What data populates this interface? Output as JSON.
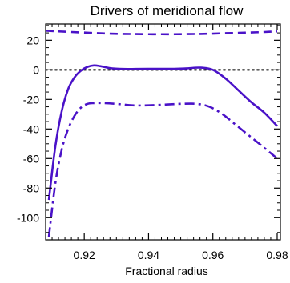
{
  "chart_data": {
    "type": "line",
    "title": "Drivers of meridional flow",
    "xlabel": "Fractional radius",
    "ylabel": "",
    "xlim": [
      0.908,
      0.981
    ],
    "ylim": [
      -115,
      31
    ],
    "x_ticks": [
      0.92,
      0.94,
      0.96,
      0.98
    ],
    "x_tick_labels": [
      "0.92",
      "0.94",
      "0.96",
      "0.98"
    ],
    "y_ticks": [
      20,
      0,
      -20,
      -40,
      -60,
      -80,
      -100
    ],
    "y_tick_labels": [
      "20",
      "0",
      "-20",
      "-40",
      "-60",
      "-80",
      "-100"
    ],
    "grid": false,
    "legend": "none",
    "series_color": "#4a12c8",
    "zero_line": "dotted",
    "series": [
      {
        "style": "solid",
        "x": [
          0.909,
          0.911,
          0.913,
          0.915,
          0.917,
          0.919,
          0.921,
          0.923,
          0.925,
          0.928,
          0.932,
          0.936,
          0.94,
          0.944,
          0.948,
          0.952,
          0.956,
          0.96,
          0.964,
          0.968,
          0.972,
          0.976,
          0.98
        ],
        "y": [
          -88,
          -52,
          -28,
          -13,
          -5,
          -0.5,
          2,
          3,
          2.5,
          1.2,
          0.6,
          0.6,
          0.7,
          0.7,
          0.7,
          1,
          1.5,
          0,
          -6,
          -14,
          -22,
          -29,
          -38
        ]
      },
      {
        "style": "dash",
        "x": [
          0.908,
          0.912,
          0.916,
          0.92,
          0.924,
          0.928,
          0.932,
          0.936,
          0.94,
          0.944,
          0.948,
          0.952,
          0.956,
          0.96,
          0.964,
          0.968,
          0.972,
          0.976,
          0.98
        ],
        "y": [
          26.5,
          26,
          25.6,
          25.2,
          24.8,
          24.5,
          24.3,
          24.2,
          24.1,
          24.1,
          24.1,
          24.2,
          24.3,
          24.5,
          24.8,
          25,
          25.3,
          25.6,
          26
        ]
      },
      {
        "style": "dashdot",
        "x": [
          0.909,
          0.911,
          0.913,
          0.915,
          0.917,
          0.919,
          0.921,
          0.923,
          0.926,
          0.93,
          0.935,
          0.94,
          0.945,
          0.95,
          0.955,
          0.959,
          0.963,
          0.967,
          0.971,
          0.975,
          0.98
        ],
        "y": [
          -113,
          -77,
          -54,
          -40,
          -31,
          -25.5,
          -23,
          -22.5,
          -22.5,
          -23,
          -24,
          -24,
          -23.5,
          -23,
          -23,
          -25,
          -30,
          -37,
          -44,
          -51,
          -60
        ]
      }
    ]
  }
}
